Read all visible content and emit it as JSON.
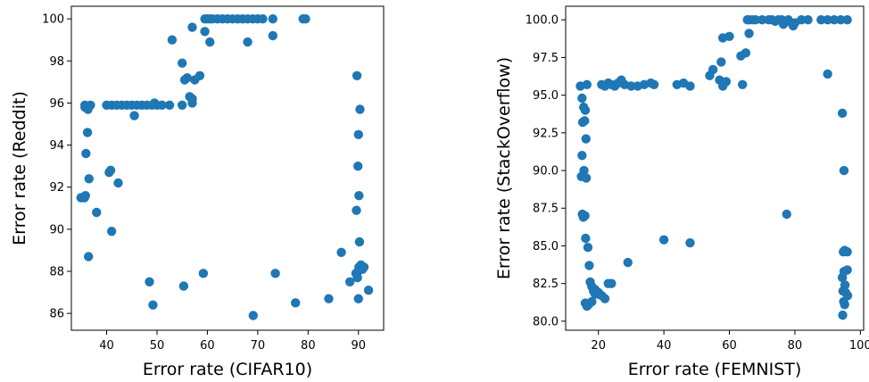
{
  "chart_data": [
    {
      "type": "scatter",
      "xlabel": "Error rate (CIFAR10)",
      "ylabel": "Error rate (Reddit)",
      "xlim": [
        33,
        95
      ],
      "ylim": [
        85.2,
        100.6
      ],
      "xticks": [
        40,
        50,
        60,
        70,
        80,
        90
      ],
      "yticks": [
        86,
        88,
        90,
        92,
        94,
        96,
        98,
        100
      ],
      "grid": false,
      "marker_color": "#1f77b4",
      "x": [
        35.7,
        36.0,
        36.3,
        35.9,
        36.2,
        36.5,
        35.8,
        35.6,
        36.4,
        35.7,
        34.9,
        38.0,
        36.8,
        41.0,
        40.8,
        40.5,
        42.3,
        45.5,
        48.5,
        49.2,
        55.3,
        59.2,
        69.1,
        73.5,
        77.5,
        84.1,
        86.6,
        88.3,
        89.5,
        89.9,
        90.1,
        90.3,
        90.5,
        90.8,
        91.1,
        92.0,
        90.0,
        89.8,
        90.2,
        89.6,
        90.1,
        89.9,
        90.0,
        90.3,
        89.7,
        40.0,
        41.0,
        42.0,
        43.0,
        44.0,
        45.0,
        46.0,
        47.0,
        48.0,
        49.0,
        50.0,
        51.0,
        52.5,
        49.5,
        53.0,
        55.0,
        55.5,
        56.0,
        56.5,
        57.0,
        57.5,
        58.5,
        55.0,
        57.0,
        59.5,
        60.0,
        60.5,
        61.0,
        62.0,
        63.0,
        64.0,
        65.0,
        66.0,
        67.0,
        68.0,
        69.0,
        70.0,
        71.0,
        73.0,
        79.0,
        79.5,
        68.0,
        73.0,
        60.5,
        59.5,
        57.0
      ],
      "y": [
        95.9,
        95.8,
        95.7,
        93.6,
        94.6,
        92.4,
        91.6,
        91.5,
        88.7,
        95.8,
        91.5,
        90.8,
        95.9,
        89.9,
        92.8,
        92.7,
        92.2,
        95.4,
        87.5,
        86.4,
        87.3,
        87.9,
        85.9,
        87.9,
        86.5,
        86.7,
        88.9,
        87.5,
        87.9,
        88.0,
        88.2,
        88.1,
        88.3,
        88.1,
        88.2,
        87.1,
        86.7,
        87.7,
        89.4,
        90.9,
        91.6,
        93.0,
        94.5,
        95.7,
        97.3,
        95.9,
        95.9,
        95.9,
        95.9,
        95.9,
        95.9,
        95.9,
        95.9,
        95.9,
        95.9,
        95.9,
        95.9,
        95.9,
        96.0,
        99.0,
        97.9,
        97.1,
        97.2,
        96.3,
        96.0,
        97.1,
        97.3,
        95.9,
        99.6,
        99.4,
        100.0,
        100.0,
        100.0,
        100.0,
        100.0,
        100.0,
        100.0,
        100.0,
        100.0,
        100.0,
        100.0,
        100.0,
        100.0,
        100.0,
        100.0,
        100.0,
        98.9,
        99.2,
        98.9,
        100.0,
        96.2
      ]
    },
    {
      "type": "scatter",
      "xlabel": "Error rate (FEMNIST)",
      "ylabel": "Error rate (StackOverflow)",
      "xlim": [
        10,
        101
      ],
      "ylim": [
        79.4,
        100.9
      ],
      "xticks": [
        20,
        40,
        60,
        80,
        100
      ],
      "yticks": [
        80.0,
        82.5,
        85.0,
        87.5,
        90.0,
        92.5,
        95.0,
        97.5,
        100.0
      ],
      "grid": false,
      "marker_color": "#1f77b4",
      "x": [
        14.5,
        15.0,
        15.5,
        16.0,
        16.5,
        15.2,
        15.8,
        16.2,
        15.0,
        14.8,
        15.6,
        16.3,
        15.1,
        15.9,
        15.4,
        16.1,
        16.8,
        17.2,
        17.5,
        18.0,
        18.5,
        19.0,
        20.0,
        21.0,
        22.0,
        23.0,
        16.0,
        16.5,
        17.0,
        18.0,
        19.0,
        20.0,
        21.0,
        22.0,
        23.0,
        24.0,
        25.0,
        26.0,
        27.0,
        28.0,
        30.0,
        32.0,
        34.0,
        36.0,
        37.0,
        44.0,
        46.0,
        48.0,
        40.0,
        48.0,
        29.0,
        24.0,
        54.0,
        55.0,
        57.0,
        58.0,
        59.0,
        57.5,
        58.0,
        60.0,
        64.0,
        65.0,
        63.5,
        66.0,
        65.5,
        66.0,
        67.0,
        68.0,
        70.0,
        72.0,
        73.0,
        74.0,
        75.0,
        76.0,
        78.0,
        80.0,
        82.0,
        84.0,
        88.0,
        90.0,
        92.0,
        94.0,
        96.0,
        76.5,
        78.0,
        79.5,
        90.0,
        77.5,
        94.5,
        95.0,
        94.8,
        95.2,
        96.0,
        94.5,
        95.0,
        96.0,
        95.3,
        94.7,
        96.1,
        94.9,
        95.2,
        94.6,
        95.5
      ],
      "y": [
        95.6,
        94.8,
        94.2,
        94.0,
        95.7,
        93.2,
        93.3,
        92.1,
        91.0,
        89.6,
        90.0,
        89.5,
        87.1,
        87.0,
        86.9,
        85.5,
        84.9,
        83.7,
        82.6,
        82.3,
        82.0,
        81.8,
        81.9,
        81.7,
        81.5,
        82.5,
        81.2,
        81.0,
        81.1,
        81.3,
        82.1,
        81.8,
        95.7,
        95.6,
        95.8,
        95.7,
        95.6,
        95.8,
        96.0,
        95.7,
        95.6,
        95.6,
        95.7,
        95.8,
        95.7,
        95.7,
        95.8,
        95.6,
        85.4,
        85.2,
        83.9,
        82.5,
        96.3,
        96.7,
        96.0,
        95.6,
        95.9,
        97.2,
        98.8,
        98.9,
        95.7,
        97.8,
        97.6,
        99.1,
        100.0,
        100.0,
        100.0,
        100.0,
        100.0,
        100.0,
        100.0,
        99.9,
        100.0,
        100.0,
        100.0,
        99.8,
        100.0,
        100.0,
        100.0,
        100.0,
        100.0,
        100.0,
        100.0,
        99.7,
        99.9,
        99.6,
        96.4,
        87.1,
        93.8,
        90.0,
        84.6,
        84.7,
        84.6,
        82.9,
        83.3,
        83.4,
        82.4,
        82.0,
        81.7,
        81.3,
        81.1,
        80.4,
        81.9
      ]
    }
  ]
}
